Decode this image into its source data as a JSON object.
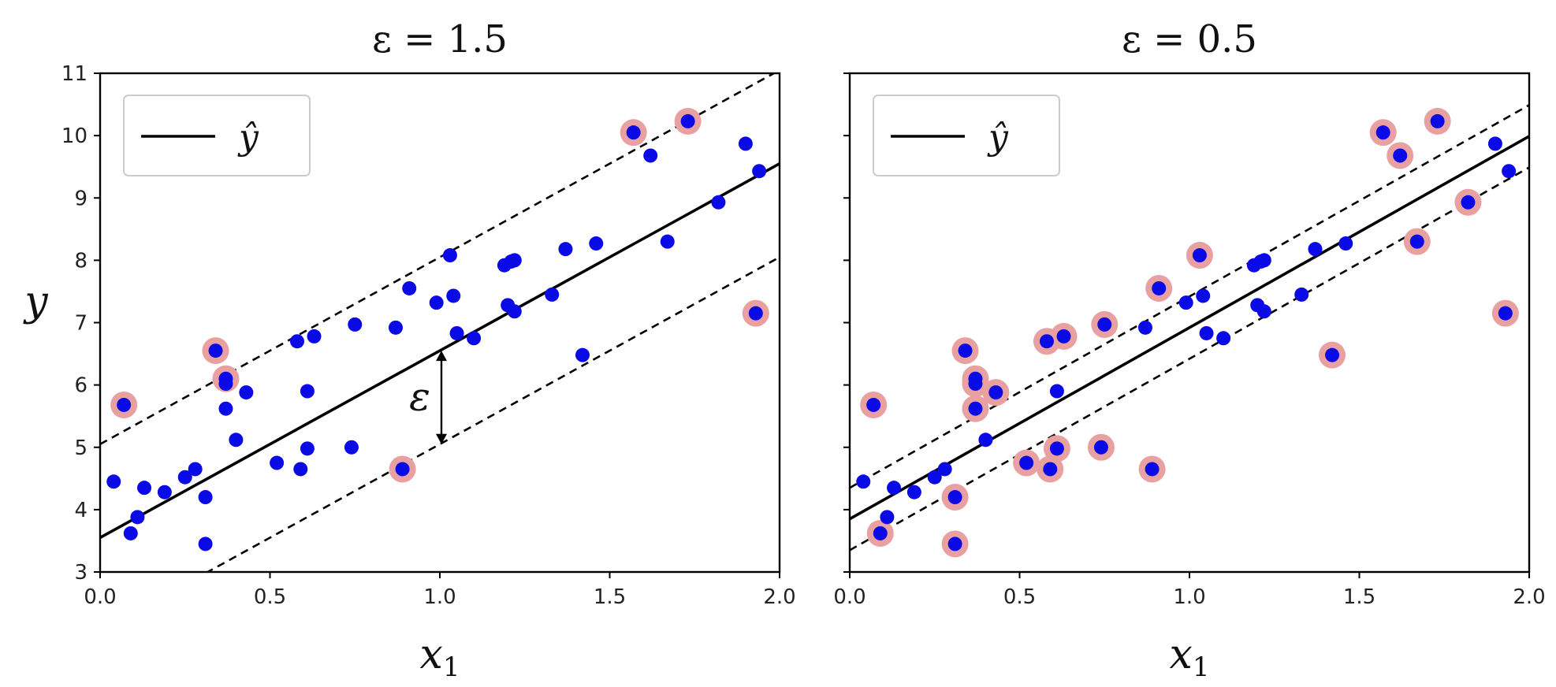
{
  "chart_data": [
    {
      "type": "scatter",
      "title": "ε = 1.5",
      "xlabel": "x1",
      "ylabel": "y",
      "xlim": [
        0.0,
        2.0
      ],
      "ylim": [
        3,
        11
      ],
      "x_ticks": [
        "0.0",
        "0.5",
        "1.0",
        "1.5",
        "2.0"
      ],
      "y_ticks": [
        "3",
        "4",
        "5",
        "6",
        "7",
        "8",
        "9",
        "10",
        "11"
      ],
      "show_y_tick_labels": true,
      "epsilon": 1.5,
      "epsilon_label": "ε",
      "epsilon_marker_x": 1.0,
      "regression": {
        "intercept": 3.55,
        "slope": 3.0
      },
      "legend": {
        "label": "ŷ",
        "placement": "upper-left"
      },
      "colors": {
        "points": "#0a0ae6",
        "support": "#e8a0a0",
        "line": "#000000"
      },
      "points": [
        {
          "x": 0.04,
          "y": 4.45,
          "support": false
        },
        {
          "x": 0.07,
          "y": 5.68,
          "support": true
        },
        {
          "x": 0.09,
          "y": 3.62,
          "support": false
        },
        {
          "x": 0.11,
          "y": 3.88,
          "support": false
        },
        {
          "x": 0.13,
          "y": 4.35,
          "support": false
        },
        {
          "x": 0.19,
          "y": 4.28,
          "support": false
        },
        {
          "x": 0.25,
          "y": 4.52,
          "support": false
        },
        {
          "x": 0.28,
          "y": 4.65,
          "support": false
        },
        {
          "x": 0.31,
          "y": 4.2,
          "support": false
        },
        {
          "x": 0.31,
          "y": 3.45,
          "support": false
        },
        {
          "x": 0.34,
          "y": 6.55,
          "support": true
        },
        {
          "x": 0.37,
          "y": 6.1,
          "support": true
        },
        {
          "x": 0.37,
          "y": 6.02,
          "support": false
        },
        {
          "x": 0.37,
          "y": 5.62,
          "support": false
        },
        {
          "x": 0.4,
          "y": 5.12,
          "support": false
        },
        {
          "x": 0.43,
          "y": 5.88,
          "support": false
        },
        {
          "x": 0.52,
          "y": 4.75,
          "support": false
        },
        {
          "x": 0.58,
          "y": 6.7,
          "support": false
        },
        {
          "x": 0.59,
          "y": 4.65,
          "support": false
        },
        {
          "x": 0.61,
          "y": 5.9,
          "support": false
        },
        {
          "x": 0.61,
          "y": 4.98,
          "support": false
        },
        {
          "x": 0.63,
          "y": 6.78,
          "support": false
        },
        {
          "x": 0.74,
          "y": 5.0,
          "support": false
        },
        {
          "x": 0.75,
          "y": 6.97,
          "support": false
        },
        {
          "x": 0.87,
          "y": 6.92,
          "support": false
        },
        {
          "x": 0.89,
          "y": 4.65,
          "support": true
        },
        {
          "x": 0.91,
          "y": 7.55,
          "support": false
        },
        {
          "x": 0.99,
          "y": 7.32,
          "support": false
        },
        {
          "x": 1.03,
          "y": 8.08,
          "support": false
        },
        {
          "x": 1.04,
          "y": 7.43,
          "support": false
        },
        {
          "x": 1.05,
          "y": 6.83,
          "support": false
        },
        {
          "x": 1.1,
          "y": 6.75,
          "support": false
        },
        {
          "x": 1.19,
          "y": 7.92,
          "support": false
        },
        {
          "x": 1.2,
          "y": 7.28,
          "support": false
        },
        {
          "x": 1.21,
          "y": 7.98,
          "support": false
        },
        {
          "x": 1.22,
          "y": 8.0,
          "support": false
        },
        {
          "x": 1.22,
          "y": 7.18,
          "support": false
        },
        {
          "x": 1.33,
          "y": 7.45,
          "support": false
        },
        {
          "x": 1.37,
          "y": 8.18,
          "support": false
        },
        {
          "x": 1.42,
          "y": 6.48,
          "support": false
        },
        {
          "x": 1.46,
          "y": 8.27,
          "support": false
        },
        {
          "x": 1.57,
          "y": 10.05,
          "support": true
        },
        {
          "x": 1.62,
          "y": 9.68,
          "support": false
        },
        {
          "x": 1.67,
          "y": 8.3,
          "support": false
        },
        {
          "x": 1.73,
          "y": 10.23,
          "support": true
        },
        {
          "x": 1.82,
          "y": 8.93,
          "support": false
        },
        {
          "x": 1.9,
          "y": 9.87,
          "support": false
        },
        {
          "x": 1.93,
          "y": 7.15,
          "support": true
        },
        {
          "x": 1.94,
          "y": 9.43,
          "support": false
        }
      ]
    },
    {
      "type": "scatter",
      "title": "ε = 0.5",
      "xlabel": "x1",
      "ylabel": "",
      "xlim": [
        0.0,
        2.0
      ],
      "ylim": [
        3,
        11
      ],
      "x_ticks": [
        "0.0",
        "0.5",
        "1.0",
        "1.5",
        "2.0"
      ],
      "y_ticks": [
        "3",
        "4",
        "5",
        "6",
        "7",
        "8",
        "9",
        "10",
        "11"
      ],
      "show_y_tick_labels": false,
      "epsilon": 0.5,
      "regression": {
        "intercept": 3.85,
        "slope": 3.07
      },
      "legend": {
        "label": "ŷ",
        "placement": "upper-left"
      },
      "colors": {
        "points": "#0a0ae6",
        "support": "#e8a0a0",
        "line": "#000000"
      },
      "points": [
        {
          "x": 0.04,
          "y": 4.45,
          "support": false
        },
        {
          "x": 0.07,
          "y": 5.68,
          "support": true
        },
        {
          "x": 0.09,
          "y": 3.62,
          "support": true
        },
        {
          "x": 0.11,
          "y": 3.88,
          "support": false
        },
        {
          "x": 0.13,
          "y": 4.35,
          "support": false
        },
        {
          "x": 0.19,
          "y": 4.28,
          "support": false
        },
        {
          "x": 0.25,
          "y": 4.52,
          "support": false
        },
        {
          "x": 0.28,
          "y": 4.65,
          "support": false
        },
        {
          "x": 0.31,
          "y": 4.2,
          "support": true
        },
        {
          "x": 0.31,
          "y": 3.45,
          "support": true
        },
        {
          "x": 0.34,
          "y": 6.55,
          "support": true
        },
        {
          "x": 0.37,
          "y": 6.1,
          "support": true
        },
        {
          "x": 0.37,
          "y": 6.02,
          "support": true
        },
        {
          "x": 0.37,
          "y": 5.62,
          "support": true
        },
        {
          "x": 0.4,
          "y": 5.12,
          "support": false
        },
        {
          "x": 0.43,
          "y": 5.88,
          "support": true
        },
        {
          "x": 0.52,
          "y": 4.75,
          "support": true
        },
        {
          "x": 0.58,
          "y": 6.7,
          "support": true
        },
        {
          "x": 0.59,
          "y": 4.65,
          "support": true
        },
        {
          "x": 0.61,
          "y": 5.9,
          "support": false
        },
        {
          "x": 0.61,
          "y": 4.98,
          "support": true
        },
        {
          "x": 0.63,
          "y": 6.78,
          "support": true
        },
        {
          "x": 0.74,
          "y": 5.0,
          "support": true
        },
        {
          "x": 0.75,
          "y": 6.97,
          "support": true
        },
        {
          "x": 0.87,
          "y": 6.92,
          "support": false
        },
        {
          "x": 0.89,
          "y": 4.65,
          "support": true
        },
        {
          "x": 0.91,
          "y": 7.55,
          "support": true
        },
        {
          "x": 0.99,
          "y": 7.32,
          "support": false
        },
        {
          "x": 1.03,
          "y": 8.08,
          "support": true
        },
        {
          "x": 1.04,
          "y": 7.43,
          "support": false
        },
        {
          "x": 1.05,
          "y": 6.83,
          "support": false
        },
        {
          "x": 1.1,
          "y": 6.75,
          "support": false
        },
        {
          "x": 1.19,
          "y": 7.92,
          "support": false
        },
        {
          "x": 1.2,
          "y": 7.28,
          "support": false
        },
        {
          "x": 1.21,
          "y": 7.98,
          "support": false
        },
        {
          "x": 1.22,
          "y": 8.0,
          "support": false
        },
        {
          "x": 1.22,
          "y": 7.18,
          "support": false
        },
        {
          "x": 1.33,
          "y": 7.45,
          "support": false
        },
        {
          "x": 1.37,
          "y": 8.18,
          "support": false
        },
        {
          "x": 1.42,
          "y": 6.48,
          "support": true
        },
        {
          "x": 1.46,
          "y": 8.27,
          "support": false
        },
        {
          "x": 1.57,
          "y": 10.05,
          "support": true
        },
        {
          "x": 1.62,
          "y": 9.68,
          "support": true
        },
        {
          "x": 1.67,
          "y": 8.3,
          "support": true
        },
        {
          "x": 1.73,
          "y": 10.23,
          "support": true
        },
        {
          "x": 1.82,
          "y": 8.93,
          "support": true
        },
        {
          "x": 1.9,
          "y": 9.87,
          "support": false
        },
        {
          "x": 1.93,
          "y": 7.15,
          "support": true
        },
        {
          "x": 1.94,
          "y": 9.43,
          "support": false
        }
      ]
    }
  ]
}
